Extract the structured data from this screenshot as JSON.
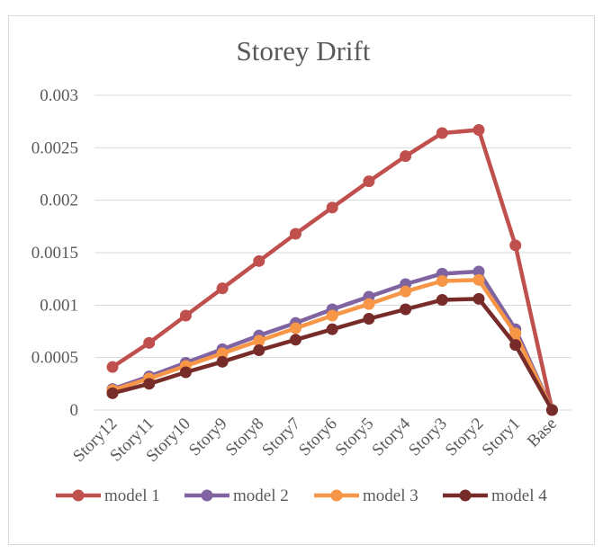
{
  "chart_data": {
    "type": "line",
    "title": "Storey Drift",
    "xlabel": "",
    "ylabel": "",
    "categories": [
      "Story12",
      "Story11",
      "Story10",
      "Story9",
      "Story8",
      "Story7",
      "Story6",
      "Story5",
      "Story4",
      "Story3",
      "Story2",
      "Story1",
      "Base"
    ],
    "ylim": [
      0,
      0.003
    ],
    "yticks": [
      "0",
      "0.0005",
      "0.001",
      "0.0015",
      "0.002",
      "0.0025",
      "0.003"
    ],
    "grid": true,
    "legend_position": "bottom",
    "series": [
      {
        "name": "model 1",
        "color": "#c0504d",
        "values": [
          0.00041,
          0.00064,
          0.0009,
          0.00116,
          0.00142,
          0.00168,
          0.00193,
          0.00218,
          0.00242,
          0.00264,
          0.00267,
          0.00157,
          0
        ]
      },
      {
        "name": "model 2",
        "color": "#8064a2",
        "values": [
          0.0002,
          0.00032,
          0.00045,
          0.00058,
          0.00071,
          0.00083,
          0.00096,
          0.00108,
          0.0012,
          0.0013,
          0.00132,
          0.00077,
          0
        ]
      },
      {
        "name": "model 3",
        "color": "#f79646",
        "values": [
          0.00019,
          0.0003,
          0.00042,
          0.00054,
          0.00066,
          0.00078,
          0.0009,
          0.00101,
          0.00113,
          0.00123,
          0.00124,
          0.00073,
          0
        ]
      },
      {
        "name": "model 4",
        "color": "#772c2a",
        "values": [
          0.00016,
          0.00025,
          0.00036,
          0.00046,
          0.00057,
          0.00067,
          0.00077,
          0.00087,
          0.00096,
          0.00105,
          0.00106,
          0.00062,
          0
        ]
      }
    ]
  }
}
